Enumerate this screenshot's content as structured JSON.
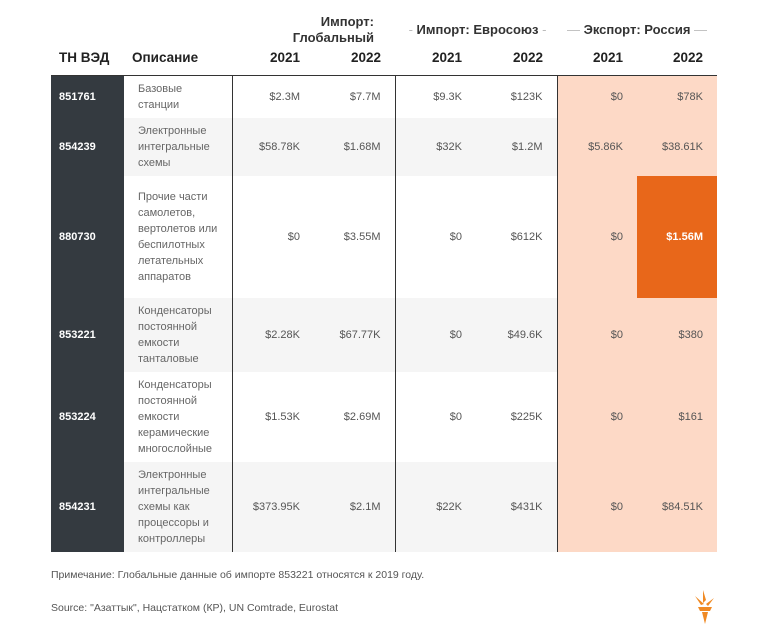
{
  "chart_data": {
    "type": "table",
    "groups": [
      "Импорт: Глобальный",
      "Импорт: Евросоюз",
      "Экспорт: Россия"
    ],
    "columns": [
      "ТН ВЭД",
      "Описание",
      "2021",
      "2022",
      "2021",
      "2022",
      "2021",
      "2022"
    ],
    "rows": [
      {
        "code": "851761",
        "desc": "Базовые станции",
        "values": [
          "$2.3M",
          "$7.7M",
          "$9.3K",
          "$123K",
          "$0",
          "$78K"
        ]
      },
      {
        "code": "854239",
        "desc": "Электронные интегральные схемы",
        "values": [
          "$58.78K",
          "$1.68M",
          "$32K",
          "$1.2M",
          "$5.86K",
          "$38.61K"
        ]
      },
      {
        "code": "880730",
        "desc": "Прочие части самолетов, вертолетов или беспилотных летательных аппаратов",
        "values": [
          "$0",
          "$3.55M",
          "$0",
          "$612K",
          "$0",
          "$1.56M"
        ]
      },
      {
        "code": "853221",
        "desc": "Конденсаторы постоянной емкости танталовые",
        "values": [
          "$2.28K",
          "$67.77K",
          "$0",
          "$49.6K",
          "$0",
          "$380"
        ]
      },
      {
        "code": "853224",
        "desc": "Конденсаторы постоянной емкости керамические многослойные",
        "values": [
          "$1.53K",
          "$2.69M",
          "$0",
          "$225K",
          "$0",
          "$161"
        ]
      },
      {
        "code": "854231",
        "desc": "Электронные интегральные схемы как процессоры и контроллеры",
        "values": [
          "$373.95K",
          "$2.1M",
          "$22K",
          "$431K",
          "$0",
          "$84.51K"
        ]
      }
    ],
    "highlight": {
      "row": "880730",
      "column": "Экспорт: Россия 2022",
      "color": "#e8671a"
    },
    "colors": {
      "code_bg": "#343a40",
      "russia_bg": "#fdd9c6",
      "alt_row": "#f5f5f5"
    }
  },
  "footer": {
    "note": "Примечание: Глобальные данные об импорте 853221 относятся к 2019 году.",
    "source": "Source: \"Азаттык\", Нацстатком (КР), UN Comtrade, Eurostat",
    "logo": "RFE/RL torch logo"
  }
}
